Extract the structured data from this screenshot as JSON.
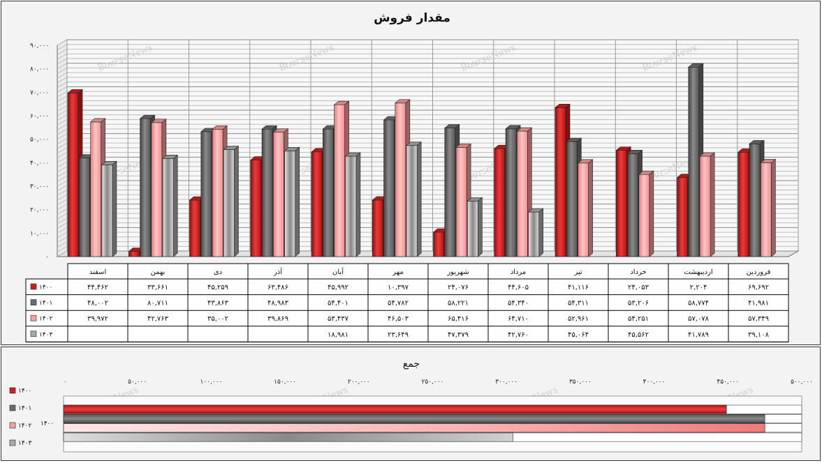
{
  "colors": {
    "1400": "#d01e1e",
    "1401": "#6d6d6d",
    "1402": "#f7a0a0",
    "1403": "#a9a9a9"
  },
  "watermark": "BourseNews",
  "chart_data": [
    {
      "type": "bar",
      "title": "مقدار فروش",
      "categories": [
        "فروردین",
        "اردیبهشت",
        "خرداد",
        "تیر",
        "مرداد",
        "شهریور",
        "مهر",
        "آبان",
        "آذر",
        "دی",
        "بهمن",
        "اسفند"
      ],
      "y_ticks": [
        "۰",
        "۱۰,۰۰۰",
        "۲۰,۰۰۰",
        "۳۰,۰۰۰",
        "۴۰,۰۰۰",
        "۵۰,۰۰۰",
        "۶۰,۰۰۰",
        "۷۰,۰۰۰",
        "۸۰,۰۰۰",
        "۹۰,۰۰۰"
      ],
      "ylim": [
        0,
        90000
      ],
      "grid": true,
      "legend": "data-table",
      "series": [
        {
          "name": "۱۴۰۰",
          "values": [
            69692,
            2204,
            24053,
            41116,
            44605,
            24076,
            10397,
            45992,
            63486,
            45259,
            33661,
            44462
          ],
          "labels": [
            "۶۹,۶۹۲",
            "۲,۲۰۴",
            "۲۴,۰۵۳",
            "۴۱,۱۱۶",
            "۴۴,۶۰۵",
            "۲۴,۰۷۶",
            "۱۰,۳۹۷",
            "۴۵,۹۹۲",
            "۶۳,۴۸۶",
            "۴۵,۲۵۹",
            "۳۳,۶۶۱",
            "۴۴,۴۶۲"
          ]
        },
        {
          "name": "۱۴۰۱",
          "values": [
            41981,
            58774,
            53206,
            54311,
            54340,
            58221,
            54782,
            54401,
            48983,
            43863,
            80711,
            48002
          ],
          "labels": [
            "۴۱,۹۸۱",
            "۵۸,۷۷۴",
            "۵۳,۲۰۶",
            "۵۴,۳۱۱",
            "۵۴,۳۴۰",
            "۵۸,۲۲۱",
            "۵۴,۷۸۲",
            "۵۴,۴۰۱",
            "۴۸,۹۸۳",
            "۴۳,۸۶۳",
            "۸۰,۷۱۱",
            "۴۸,۰۰۲"
          ]
        },
        {
          "name": "۱۴۰۲",
          "values": [
            57349,
            57078,
            54251,
            52961,
            64710,
            65416,
            46503,
            53437,
            39869,
            35002,
            42763,
            39972
          ],
          "labels": [
            "۵۷,۳۴۹",
            "۵۷,۰۷۸",
            "۵۴,۲۵۱",
            "۵۲,۹۶۱",
            "۶۴,۷۱۰",
            "۶۵,۴۱۶",
            "۴۶,۵۰۳",
            "۵۳,۴۳۷",
            "۳۹,۸۶۹",
            "۳۵,۰۰۲",
            "۴۲,۷۶۳",
            "۳۹,۹۷۲"
          ]
        },
        {
          "name": "۱۴۰۳",
          "values": [
            39108,
            41789,
            45562,
            45064,
            42760,
            47379,
            23649,
            18981,
            null,
            null,
            null,
            null
          ],
          "labels": [
            "۳۹,۱۰۸",
            "۴۱,۷۸۹",
            "۴۵,۵۶۲",
            "۴۵,۰۶۴",
            "۴۲,۷۶۰",
            "۴۷,۳۷۹",
            "۲۳,۶۴۹",
            "۱۸,۹۸۱",
            "",
            "",
            "",
            ""
          ]
        }
      ]
    },
    {
      "type": "bar",
      "orientation": "horizontal",
      "title": "جمع",
      "category": "۱۴۰۰",
      "x_ticks": [
        "۰",
        "۵۰,۰۰۰",
        "۱۰۰,۰۰۰",
        "۱۵۰,۰۰۰",
        "۲۰۰,۰۰۰",
        "۲۵۰,۰۰۰",
        "۳۰۰,۰۰۰",
        "۳۵۰,۰۰۰",
        "۴۰۰,۰۰۰",
        "۴۵۰,۰۰۰",
        "۵۰۰,۰۰۰"
      ],
      "xlim": [
        0,
        500000
      ],
      "legend": "left",
      "series": [
        {
          "name": "۱۴۰۰",
          "value": 449003
        },
        {
          "name": "۱۴۰۱",
          "value": 651575
        },
        {
          "name": "۱۴۰۲",
          "value": 609311
        },
        {
          "name": "۱۴۰۳",
          "value": 304292
        }
      ]
    }
  ]
}
